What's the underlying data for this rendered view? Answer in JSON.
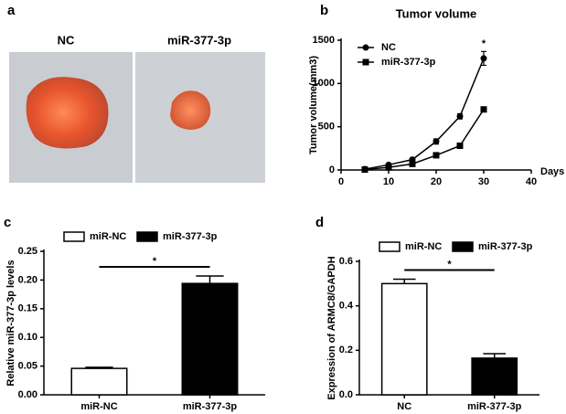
{
  "panel_labels": [
    "a",
    "b",
    "c",
    "d"
  ],
  "photo": {
    "labels": [
      "NC",
      "miR-377-3p"
    ]
  },
  "chart_data": [
    {
      "type": "line",
      "title": "Tumor volume",
      "xlabel": "Days",
      "ylabel": "Tumor volume(mm3)",
      "x": [
        5,
        10,
        15,
        20,
        25,
        30
      ],
      "series": [
        {
          "name": "NC",
          "color": "#000000",
          "marker": "circle",
          "values": [
            10,
            60,
            120,
            330,
            620,
            1290
          ],
          "errors": [
            5,
            10,
            15,
            30,
            30,
            80
          ]
        },
        {
          "name": "miR-377-3p",
          "color": "#000000",
          "marker": "square",
          "values": [
            5,
            30,
            70,
            170,
            280,
            700
          ],
          "errors": [
            2,
            5,
            10,
            10,
            20,
            15
          ]
        }
      ],
      "xlim": [
        0,
        40
      ],
      "xticks": [
        0,
        10,
        20,
        30,
        40
      ],
      "ylim": [
        0,
        1500
      ],
      "yticks": [
        0,
        500,
        1000,
        1500
      ],
      "legend": "upper left",
      "annotation": "*"
    },
    {
      "type": "bar",
      "ylabel": "Relative miR-377-3p levels",
      "categories": [
        "miR-NC",
        "miR-377-3p"
      ],
      "series": [
        {
          "name": "miR-NC",
          "color": "#ffffff",
          "values": [
            0.046,
            null
          ],
          "errors": [
            0.002,
            null
          ]
        },
        {
          "name": "miR-377-3p",
          "color": "#000000",
          "values": [
            null,
            0.194
          ],
          "errors": [
            null,
            0.013
          ]
        }
      ],
      "ylim": [
        0,
        0.25
      ],
      "yticks": [
        {
          "value": 0,
          "label": "0.00"
        },
        0.05,
        {
          "value": 0.1,
          "label": "0.10"
        },
        0.15,
        {
          "value": 0.2,
          "label": "0.20"
        },
        0.25
      ],
      "legend": "top",
      "annotation": "*"
    },
    {
      "type": "bar",
      "ylabel": "Expression of ARMC8/GAPDH",
      "categories": [
        "NC",
        "miR-377-3p"
      ],
      "series": [
        {
          "name": "miR-NC",
          "color": "#ffffff",
          "values": [
            0.5,
            null
          ],
          "errors": [
            0.02,
            null
          ]
        },
        {
          "name": "miR-377-3p",
          "color": "#000000",
          "values": [
            null,
            0.165
          ],
          "errors": [
            null,
            0.02
          ]
        }
      ],
      "ylim": [
        0,
        0.6
      ],
      "yticks": [
        {
          "value": 0,
          "label": "0.0"
        },
        0.2,
        0.4,
        0.6
      ],
      "legend": "top",
      "annotation": "*"
    }
  ]
}
